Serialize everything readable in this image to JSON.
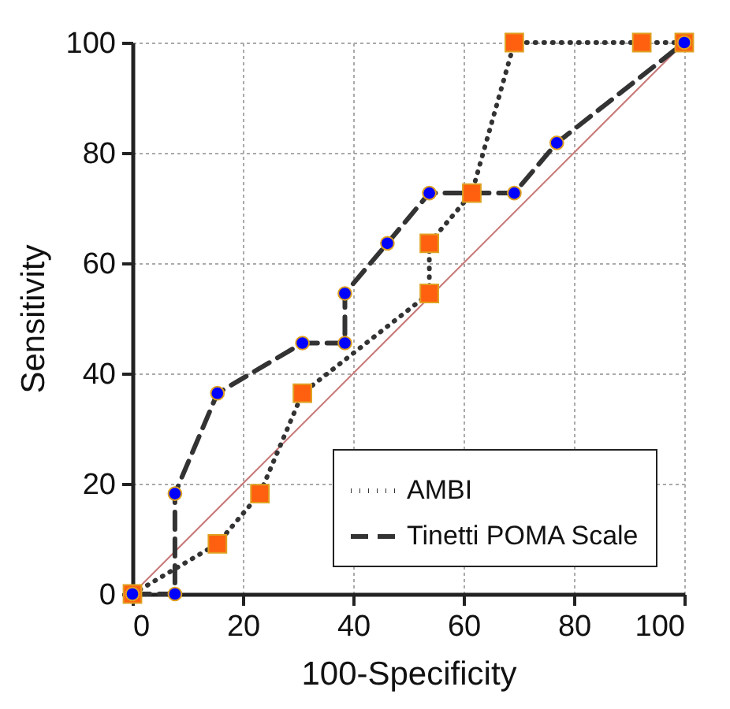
{
  "chart_data": {
    "type": "line",
    "xlabel": "100-Specificity",
    "ylabel": "Sensitivity",
    "xlim": [
      0,
      100
    ],
    "ylim": [
      0,
      100
    ],
    "xticks": [
      0,
      20,
      40,
      60,
      80,
      100
    ],
    "yticks": [
      0,
      20,
      40,
      60,
      80,
      100
    ],
    "grid": true,
    "legend": "bottom right",
    "series": [
      {
        "name": null,
        "color": "#c87878",
        "line_style": "solid",
        "marker": "none",
        "x": [
          0,
          100
        ],
        "values": [
          0,
          100
        ]
      },
      {
        "name": "AMBI",
        "color": "#333333",
        "line_style": "dotted",
        "marker": "square",
        "colors": [
          "#ff6010",
          "#ff6010",
          "#ff6010",
          "#ff6010",
          "#ff6010",
          "#ff6010",
          "#ff6010",
          "#ff6010",
          "#ff6010",
          "#ff6010"
        ],
        "x": [
          0,
          15.4,
          23.1,
          30.8,
          53.8,
          53.8,
          61.5,
          69.2,
          92.3,
          100
        ],
        "values": [
          0,
          9.1,
          18.2,
          36.4,
          54.5,
          63.6,
          72.7,
          100,
          100,
          100
        ]
      },
      {
        "name": "Tinetti POMA Scale",
        "color": "#333333",
        "line_style": "dashed",
        "marker": "circle",
        "colors": [
          "#0000ff",
          "#0000ff",
          "#0000ff",
          "#0000ff",
          "#0000ff",
          "#0000ff",
          "#0000ff",
          "#0000ff",
          "#0000ff",
          "#0000ff",
          "#0000ff",
          "#0000ff"
        ],
        "x": [
          0,
          7.7,
          7.7,
          15.4,
          30.8,
          38.5,
          38.5,
          46.2,
          53.8,
          69.2,
          76.9,
          100
        ],
        "values": [
          0,
          0,
          18.2,
          36.4,
          45.5,
          45.5,
          54.5,
          63.6,
          72.7,
          72.7,
          81.8,
          100
        ]
      }
    ]
  }
}
